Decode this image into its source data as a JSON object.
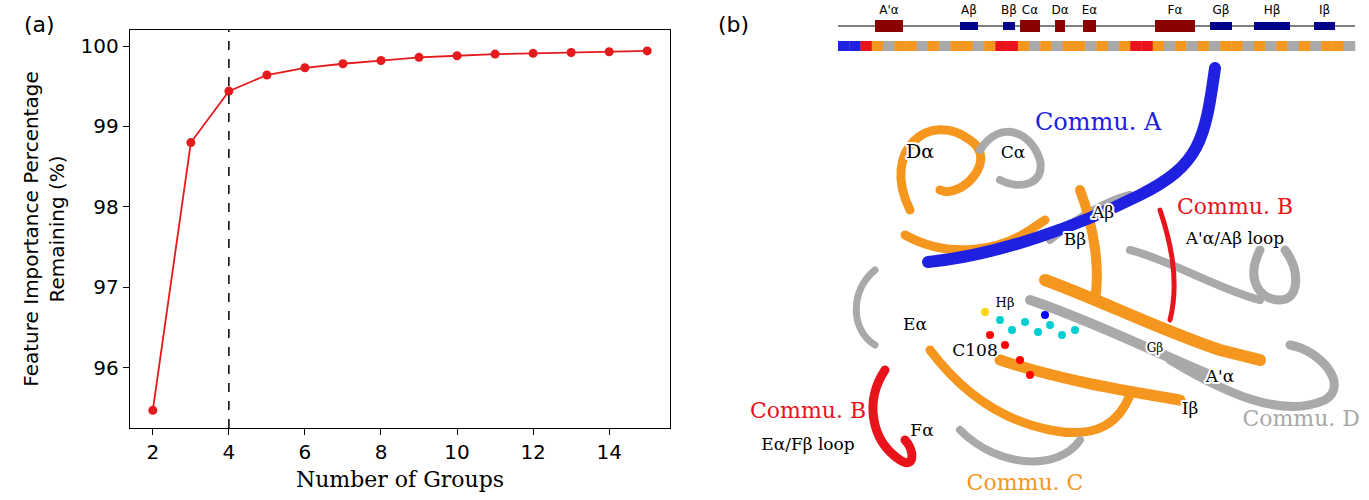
{
  "chart_data": {
    "type": "line",
    "panel_label": "(a)",
    "x": [
      2,
      3,
      4,
      5,
      6,
      7,
      8,
      9,
      10,
      11,
      12,
      13,
      14,
      15
    ],
    "values": [
      95.47,
      98.8,
      99.44,
      99.64,
      99.73,
      99.78,
      99.82,
      99.86,
      99.88,
      99.9,
      99.91,
      99.92,
      99.93,
      99.94
    ],
    "color": "#e41a1c",
    "marker": "circle",
    "x_label": "Number of Groups",
    "y_label": "Feature Importance Percentage Remaining (%)",
    "xlim": [
      1.4,
      15.6
    ],
    "ylim": [
      95.25,
      100.2
    ],
    "xticks": [
      2,
      4,
      6,
      8,
      10,
      12,
      14
    ],
    "yticks": [
      96,
      97,
      98,
      99,
      100
    ],
    "reference_line": {
      "x": 4,
      "line_style": "dashed",
      "color": "#000000"
    },
    "grid": false
  },
  "diagram": {
    "panel_label": "(b)",
    "secondary_structure": [
      {
        "label": "A'α",
        "type": "helix"
      },
      {
        "label": "Aβ",
        "type": "strand"
      },
      {
        "label": "Bβ",
        "type": "strand"
      },
      {
        "label": "Cα",
        "type": "helix"
      },
      {
        "label": "Dα",
        "type": "helix"
      },
      {
        "label": "Eα",
        "type": "helix"
      },
      {
        "label": "Fα",
        "type": "helix"
      },
      {
        "label": "Gβ",
        "type": "strand"
      },
      {
        "label": "Hβ",
        "type": "strand"
      },
      {
        "label": "Iβ",
        "type": "strand"
      }
    ],
    "structure_colors": {
      "helix": "#8b0000",
      "strand": "#00008b"
    },
    "communities": {
      "A": "#2020e0",
      "B": "#e8131b",
      "C": "#f5961e",
      "D": "#a9a9a9"
    },
    "community_track": [
      "A",
      "A",
      "B",
      "C",
      "D",
      "C",
      "C",
      "D",
      "C",
      "D",
      "C",
      "C",
      "D",
      "C",
      "B",
      "B",
      "C",
      "D",
      "C",
      "D",
      "C",
      "C",
      "D",
      "C",
      "D",
      "C",
      "B",
      "B",
      "C",
      "D",
      "C",
      "D",
      "C",
      "D",
      "C",
      "C",
      "D",
      "C",
      "D",
      "C",
      "D",
      "C",
      "D",
      "C",
      "C",
      "D"
    ],
    "labels": [
      {
        "text": "Dα",
        "color": "#000000"
      },
      {
        "text": "Cα",
        "color": "#000000"
      },
      {
        "text": "Commu. A",
        "color": "#2020e0"
      },
      {
        "text": "Aβ",
        "color": "#000000"
      },
      {
        "text": "Commu. B",
        "color": "#e8131b"
      },
      {
        "text": "A'α/Aβ loop",
        "color": "#000000"
      },
      {
        "text": "Bβ",
        "color": "#000000"
      },
      {
        "text": "Hβ",
        "color": "#000000"
      },
      {
        "text": "Eα",
        "color": "#000000"
      },
      {
        "text": "C108",
        "color": "#000000"
      },
      {
        "text": "Gβ",
        "color": "#000000"
      },
      {
        "text": "A'α",
        "color": "#000000"
      },
      {
        "text": "Commu. B",
        "color": "#e8131b"
      },
      {
        "text": "Eα/Fβ loop",
        "color": "#000000"
      },
      {
        "text": "Fα",
        "color": "#000000"
      },
      {
        "text": "Iβ",
        "color": "#000000"
      },
      {
        "text": "Commu. D",
        "color": "#a9a9a9"
      },
      {
        "text": "Commu. C",
        "color": "#f5961e"
      }
    ]
  }
}
